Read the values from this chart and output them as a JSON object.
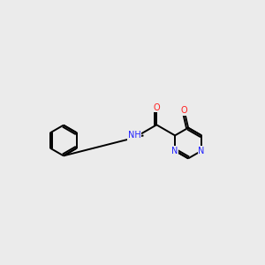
{
  "bg": "#ebebeb",
  "C": "#000000",
  "N": "#2020ff",
  "O": "#ff2020",
  "S": "#cccc00",
  "lw": 1.4,
  "fs": 7.0,
  "dpi": 100,
  "figsize": [
    3.0,
    3.0
  ]
}
